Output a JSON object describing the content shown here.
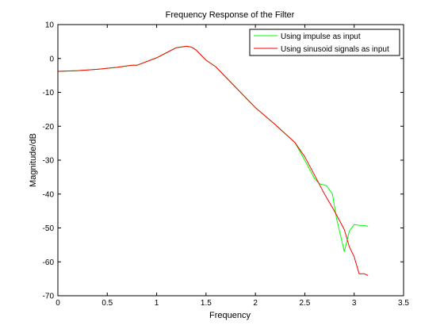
{
  "chart_data": {
    "type": "line",
    "title": "Frequency Response of the Filter",
    "xlabel": "Frequency",
    "ylabel": "Magnitude/dB",
    "xlim": [
      0,
      3.5
    ],
    "ylim": [
      -70,
      10
    ],
    "xticks": [
      0,
      0.5,
      1,
      1.5,
      2,
      2.5,
      3,
      3.5
    ],
    "xtick_labels": [
      "0",
      "0.5",
      "1",
      "1.5",
      "2",
      "2.5",
      "3",
      "3.5"
    ],
    "yticks": [
      10,
      0,
      -10,
      -20,
      -30,
      -40,
      -50,
      -60,
      -70
    ],
    "ytick_labels": [
      "10",
      "0",
      "-10",
      "-20",
      "-30",
      "-40",
      "-50",
      "-60",
      "-70"
    ],
    "grid": false,
    "legend_position": "top-right",
    "series": [
      {
        "name": "Using impulse as input",
        "color": "#00ff00",
        "x": [
          0,
          0.2,
          0.4,
          0.6,
          0.75,
          0.8,
          1.0,
          1.1,
          1.2,
          1.3,
          1.35,
          1.4,
          1.5,
          1.6,
          1.8,
          2.0,
          2.2,
          2.4,
          2.5,
          2.6,
          2.65,
          2.72,
          2.78,
          2.82,
          2.86,
          2.9,
          2.95,
          3.0,
          3.05,
          3.1,
          3.14
        ],
        "y": [
          -3.8,
          -3.6,
          -3.2,
          -2.6,
          -2.0,
          -2.0,
          0.2,
          1.7,
          3.2,
          3.6,
          3.4,
          2.5,
          -0.5,
          -2.5,
          -8.5,
          -14.5,
          -19.5,
          -24.8,
          -30.0,
          -35.5,
          -37.0,
          -37.5,
          -40.0,
          -47.0,
          -52.0,
          -57.0,
          -51.0,
          -49.0,
          -49.2,
          -49.3,
          -49.5
        ]
      },
      {
        "name": "Using sinusoid signals as input",
        "color": "#ff0000",
        "x": [
          0,
          0.2,
          0.4,
          0.6,
          0.75,
          0.8,
          1.0,
          1.1,
          1.2,
          1.3,
          1.35,
          1.4,
          1.5,
          1.6,
          1.8,
          2.0,
          2.2,
          2.4,
          2.5,
          2.6,
          2.7,
          2.8,
          2.9,
          2.95,
          3.0,
          3.05,
          3.1,
          3.14
        ],
        "y": [
          -3.8,
          -3.6,
          -3.2,
          -2.6,
          -2.0,
          -2.0,
          0.2,
          1.7,
          3.2,
          3.6,
          3.4,
          2.5,
          -0.5,
          -2.5,
          -8.5,
          -14.5,
          -19.5,
          -24.8,
          -29.0,
          -34.5,
          -40.0,
          -45.0,
          -50.5,
          -55.5,
          -58.5,
          -63.5,
          -63.5,
          -64.0
        ]
      }
    ]
  }
}
